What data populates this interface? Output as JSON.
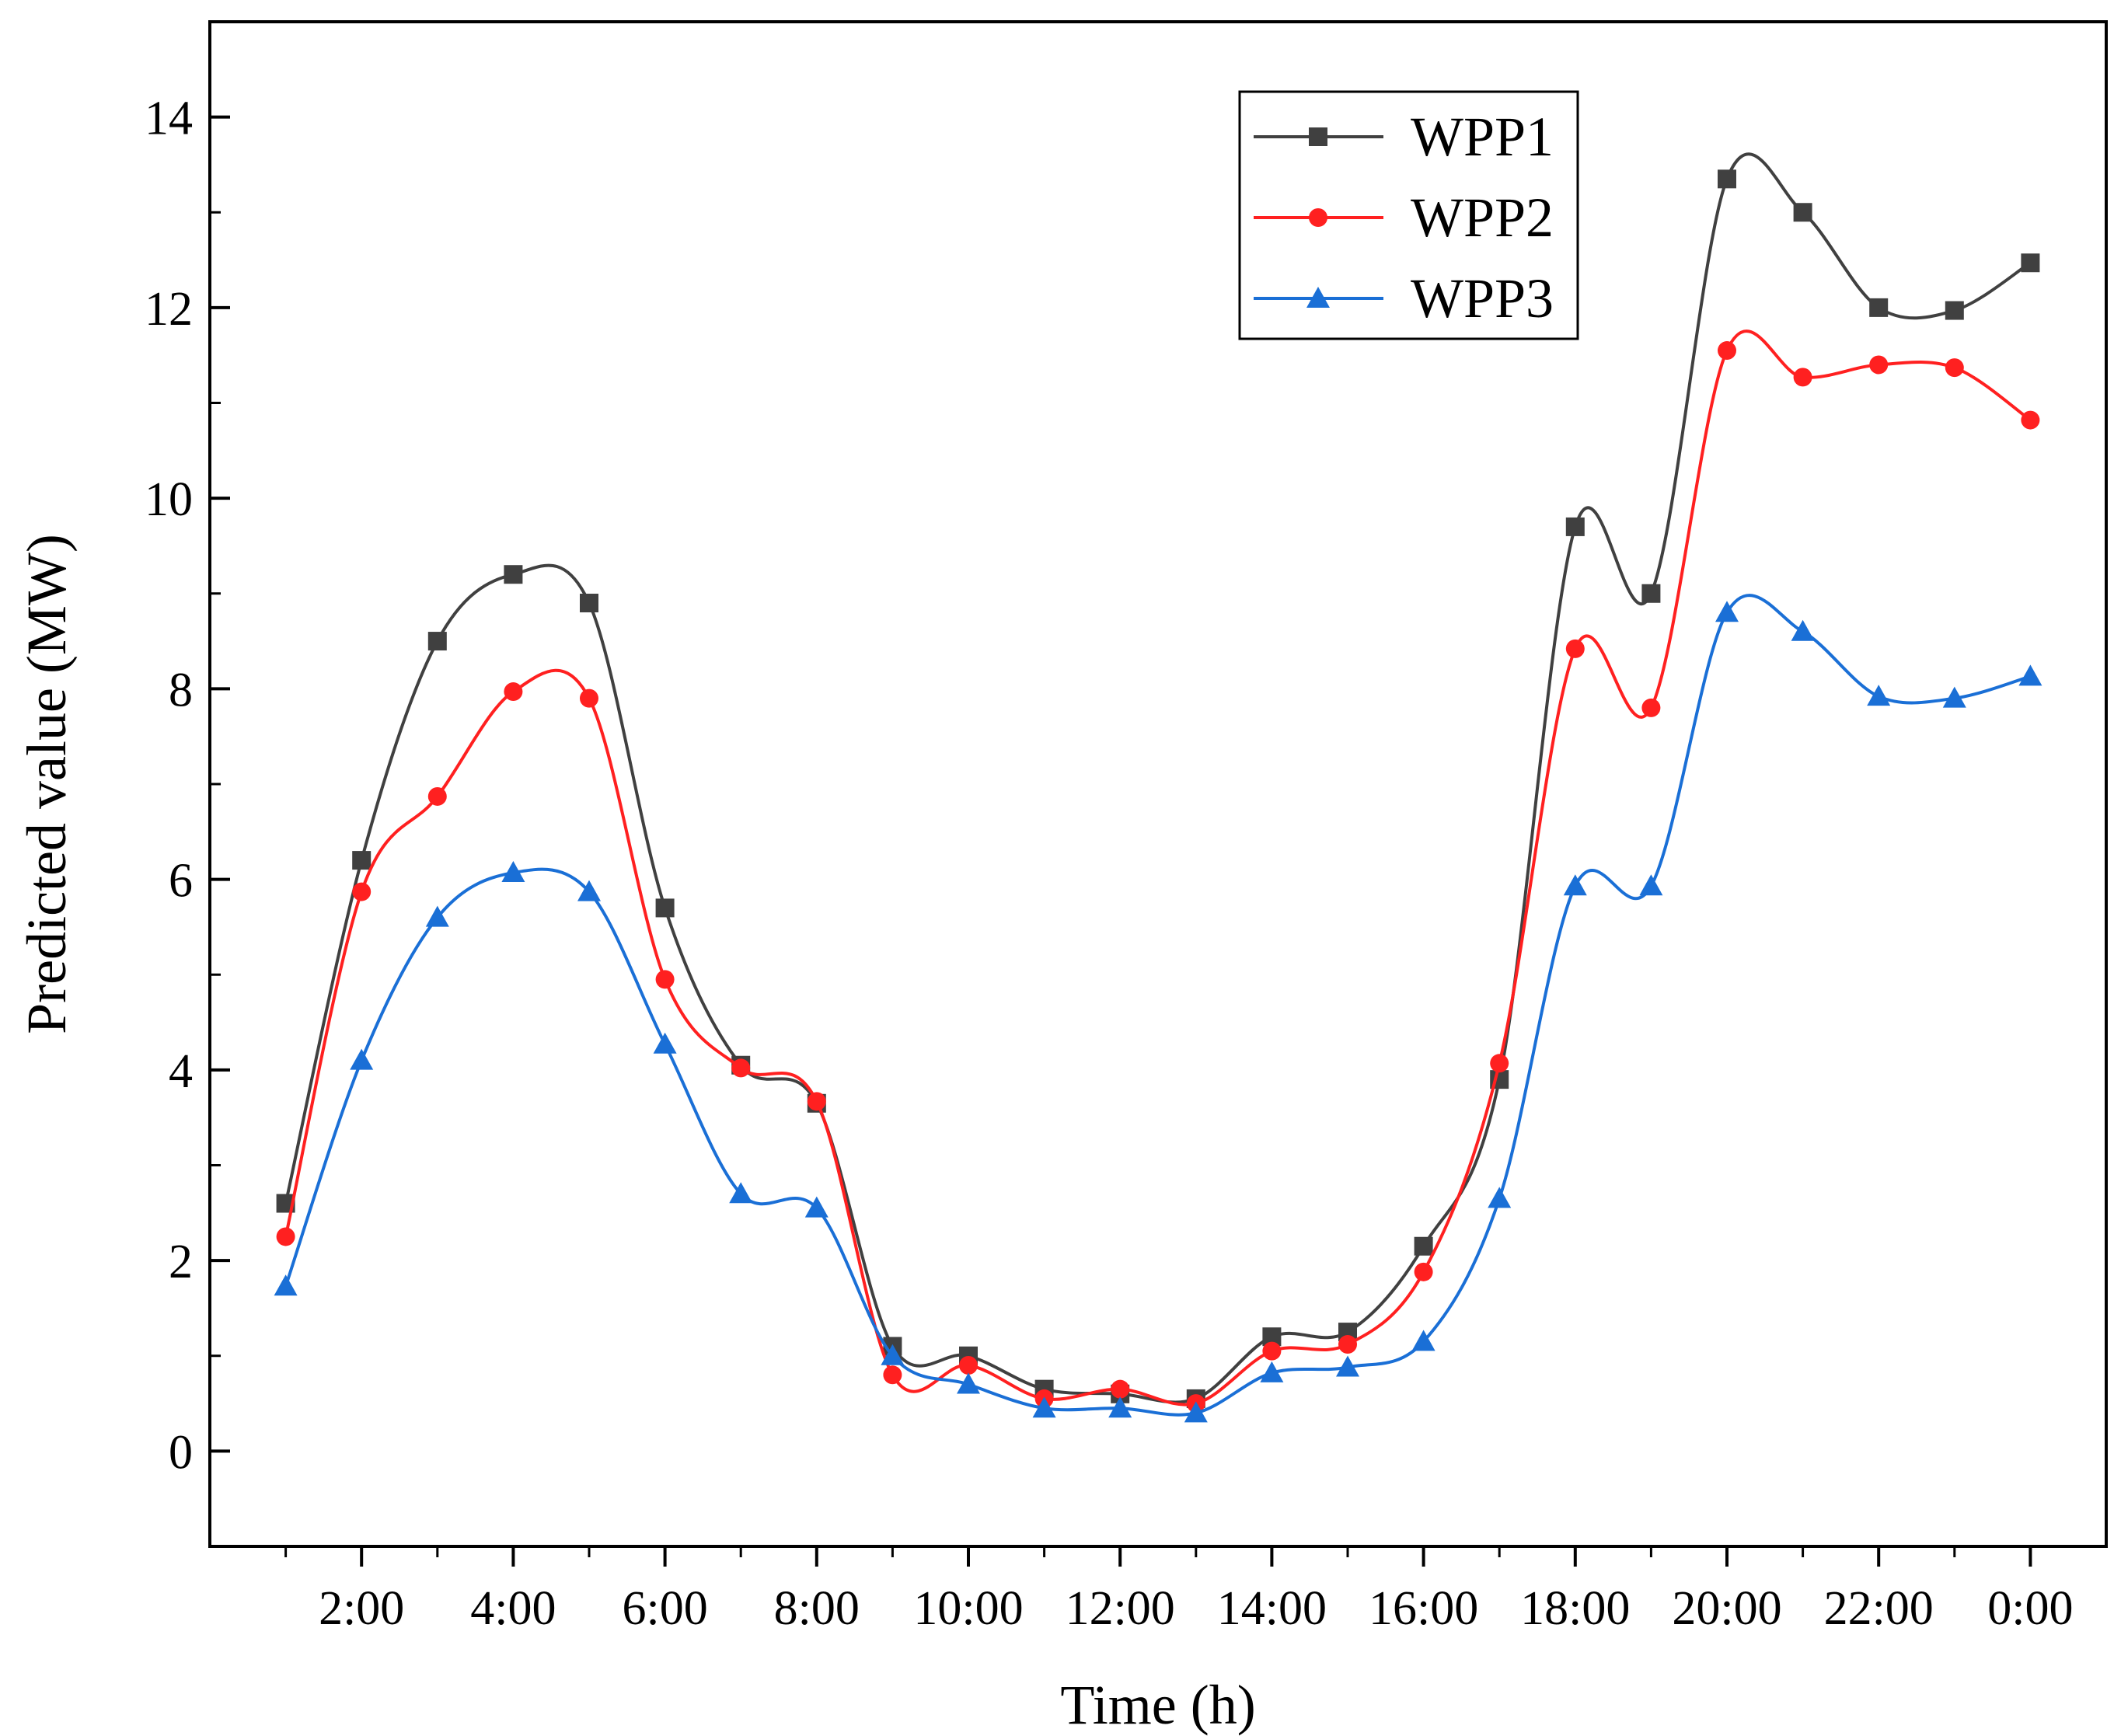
{
  "chart_data": {
    "type": "line",
    "title": "",
    "xlabel": "Time (h)",
    "ylabel": "Predicted value (MW)",
    "x": [
      1,
      2,
      3,
      4,
      5,
      6,
      7,
      8,
      9,
      10,
      11,
      12,
      13,
      14,
      15,
      16,
      17,
      18,
      19,
      20,
      21,
      22,
      23,
      24
    ],
    "xlim": [
      0,
      25
    ],
    "ylim": [
      -1,
      15
    ],
    "xticks": [
      2,
      4,
      6,
      8,
      10,
      12,
      14,
      16,
      18,
      20,
      22,
      24
    ],
    "xtick_labels": [
      "2:00",
      "4:00",
      "6:00",
      "8:00",
      "10:00",
      "12:00",
      "14:00",
      "16:00",
      "18:00",
      "20:00",
      "22:00",
      "0:00"
    ],
    "yticks": [
      0,
      2,
      4,
      6,
      8,
      10,
      12,
      14
    ],
    "ytick_labels": [
      "0",
      "2",
      "4",
      "6",
      "8",
      "10",
      "12",
      "14"
    ],
    "grid": false,
    "legend_position": "top-right",
    "series": [
      {
        "name": "WPP1",
        "color": "#404040",
        "marker": "square",
        "values": [
          2.6,
          6.2,
          8.5,
          9.2,
          8.9,
          5.7,
          4.05,
          3.65,
          1.1,
          1.0,
          0.65,
          0.6,
          0.55,
          1.2,
          1.25,
          2.15,
          3.9,
          9.7,
          9.0,
          13.35,
          13.0,
          12.0,
          11.97,
          12.47
        ]
      },
      {
        "name": "WPP2",
        "color": "#ff2020",
        "marker": "circle",
        "values": [
          2.25,
          5.87,
          6.87,
          7.97,
          7.9,
          4.95,
          4.02,
          3.67,
          0.8,
          0.9,
          0.55,
          0.65,
          0.5,
          1.05,
          1.12,
          1.88,
          4.07,
          8.42,
          7.8,
          11.55,
          11.27,
          11.4,
          11.37,
          10.82
        ]
      },
      {
        "name": "WPP3",
        "color": "#1a6fd6",
        "marker": "triangle",
        "values": [
          1.73,
          4.1,
          5.6,
          6.07,
          5.87,
          4.27,
          2.7,
          2.55,
          1.0,
          0.7,
          0.45,
          0.45,
          0.4,
          0.82,
          0.88,
          1.15,
          2.65,
          5.93,
          5.93,
          8.8,
          8.6,
          7.92,
          7.9,
          8.13
        ]
      }
    ]
  }
}
